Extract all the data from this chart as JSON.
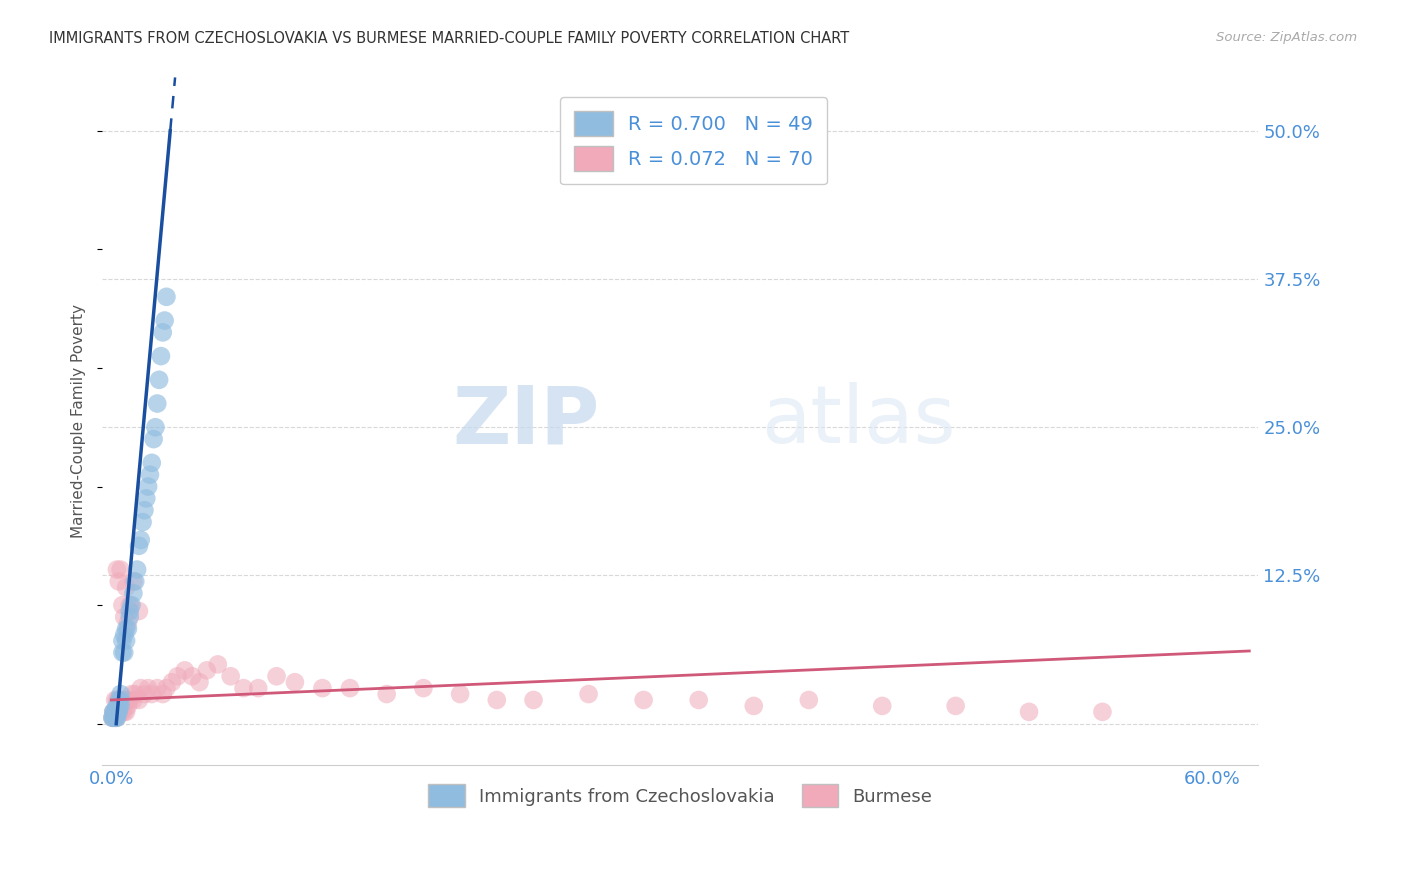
{
  "title": "IMMIGRANTS FROM CZECHOSLOVAKIA VS BURMESE MARRIED-COUPLE FAMILY POVERTY CORRELATION CHART",
  "source": "Source: ZipAtlas.com",
  "ylabel_label": "Married-Couple Family Poverty",
  "legend_entries": [
    {
      "label": "Immigrants from Czechoslovakia",
      "R": "0.700",
      "N": "49",
      "color": "#a8c8e8"
    },
    {
      "label": "Burmese",
      "R": "0.072",
      "N": "70",
      "color": "#f4b8c8"
    }
  ],
  "watermark_zip": "ZIP",
  "watermark_atlas": "atlas",
  "background_color": "#ffffff",
  "blue_color": "#4a90d9",
  "blue_scatter_color": "#90bce0",
  "pink_scatter_color": "#f0aaba",
  "blue_line_color": "#1a4fa0",
  "pink_line_color": "#d05878",
  "grid_color": "#d8d8d8",
  "czech_x": [
    0.0005,
    0.001,
    0.001,
    0.0015,
    0.0015,
    0.002,
    0.002,
    0.0025,
    0.0025,
    0.003,
    0.003,
    0.003,
    0.0035,
    0.0035,
    0.004,
    0.004,
    0.004,
    0.005,
    0.005,
    0.005,
    0.006,
    0.006,
    0.007,
    0.007,
    0.008,
    0.008,
    0.009,
    0.01,
    0.01,
    0.011,
    0.012,
    0.013,
    0.014,
    0.015,
    0.016,
    0.017,
    0.018,
    0.019,
    0.02,
    0.021,
    0.022,
    0.023,
    0.024,
    0.025,
    0.026,
    0.027,
    0.028,
    0.029,
    0.03
  ],
  "czech_y": [
    0.005,
    0.005,
    0.01,
    0.005,
    0.01,
    0.005,
    0.01,
    0.005,
    0.01,
    0.005,
    0.01,
    0.015,
    0.01,
    0.015,
    0.01,
    0.015,
    0.02,
    0.015,
    0.02,
    0.025,
    0.06,
    0.07,
    0.06,
    0.075,
    0.07,
    0.08,
    0.08,
    0.09,
    0.095,
    0.1,
    0.11,
    0.12,
    0.13,
    0.15,
    0.155,
    0.17,
    0.18,
    0.19,
    0.2,
    0.21,
    0.22,
    0.24,
    0.25,
    0.27,
    0.29,
    0.31,
    0.33,
    0.34,
    0.36
  ],
  "burmese_x": [
    0.0005,
    0.001,
    0.001,
    0.002,
    0.002,
    0.002,
    0.003,
    0.003,
    0.003,
    0.004,
    0.004,
    0.005,
    0.005,
    0.006,
    0.006,
    0.007,
    0.007,
    0.008,
    0.008,
    0.009,
    0.01,
    0.011,
    0.012,
    0.013,
    0.015,
    0.016,
    0.018,
    0.02,
    0.022,
    0.025,
    0.028,
    0.03,
    0.033,
    0.036,
    0.04,
    0.044,
    0.048,
    0.052,
    0.058,
    0.065,
    0.072,
    0.08,
    0.09,
    0.1,
    0.115,
    0.13,
    0.15,
    0.17,
    0.19,
    0.21,
    0.23,
    0.26,
    0.29,
    0.32,
    0.35,
    0.38,
    0.42,
    0.46,
    0.5,
    0.54,
    0.003,
    0.004,
    0.005,
    0.006,
    0.007,
    0.008,
    0.009,
    0.01,
    0.012,
    0.015
  ],
  "burmese_y": [
    0.005,
    0.005,
    0.01,
    0.005,
    0.01,
    0.02,
    0.005,
    0.01,
    0.02,
    0.01,
    0.02,
    0.01,
    0.02,
    0.01,
    0.015,
    0.01,
    0.02,
    0.01,
    0.02,
    0.015,
    0.02,
    0.025,
    0.02,
    0.025,
    0.02,
    0.03,
    0.025,
    0.03,
    0.025,
    0.03,
    0.025,
    0.03,
    0.035,
    0.04,
    0.045,
    0.04,
    0.035,
    0.045,
    0.05,
    0.04,
    0.03,
    0.03,
    0.04,
    0.035,
    0.03,
    0.03,
    0.025,
    0.03,
    0.025,
    0.02,
    0.02,
    0.025,
    0.02,
    0.02,
    0.015,
    0.02,
    0.015,
    0.015,
    0.01,
    0.01,
    0.13,
    0.12,
    0.13,
    0.1,
    0.09,
    0.115,
    0.085,
    0.1,
    0.12,
    0.095
  ],
  "xlim": [
    -0.005,
    0.625
  ],
  "ylim": [
    -0.035,
    0.545
  ],
  "yticks": [
    0.0,
    0.125,
    0.25,
    0.375,
    0.5
  ],
  "ytick_labels": [
    "",
    "12.5%",
    "25.0%",
    "37.5%",
    "50.0%"
  ],
  "xticks": [
    0.0,
    0.6
  ],
  "xtick_labels": [
    "0.0%",
    "60.0%"
  ]
}
